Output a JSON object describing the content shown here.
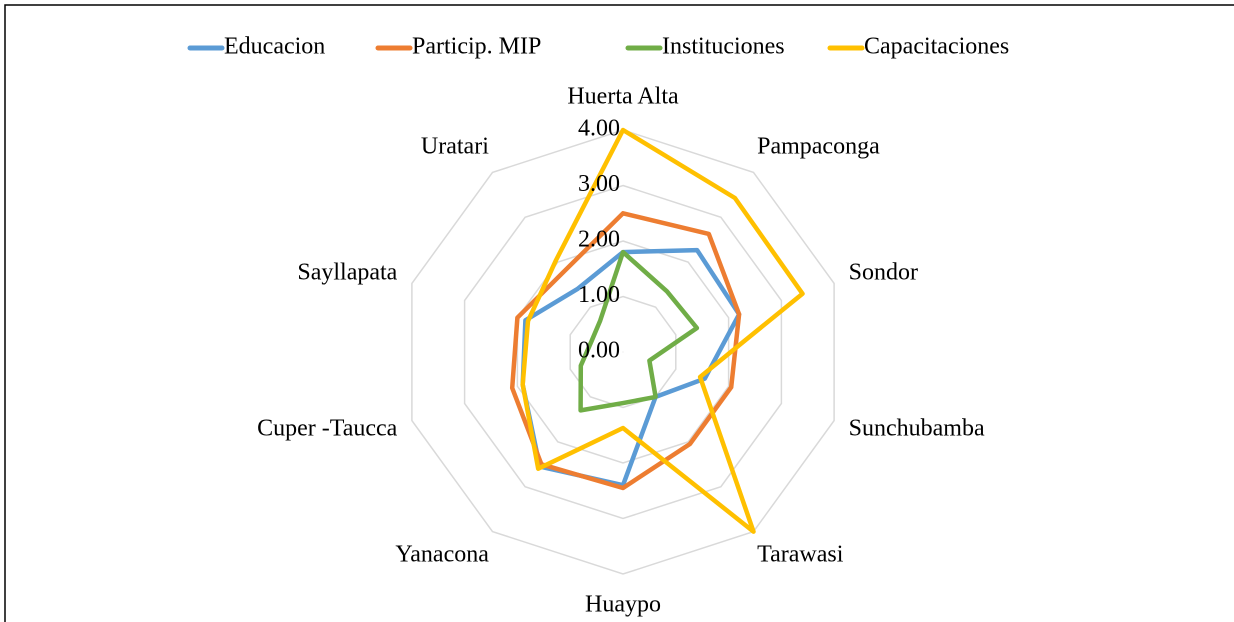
{
  "chart_data": {
    "type": "radar",
    "categories": [
      "Huerta Alta",
      "Pampaconga",
      "Sondor",
      "Sunchubamba",
      "Tarawasi",
      "Huaypo",
      "Yanacona",
      "Cuper -Taucca",
      "Sayllapata",
      "Uratari"
    ],
    "series": [
      {
        "name": "Educacion",
        "color": "#5b9bd5",
        "values": [
          1.8,
          2.27,
          2.2,
          1.55,
          1.0,
          2.4,
          2.55,
          1.9,
          1.85,
          1.4
        ]
      },
      {
        "name": "Particip. MIP",
        "color": "#ed7d31",
        "values": [
          2.5,
          2.63,
          2.2,
          2.05,
          2.05,
          2.45,
          2.5,
          2.1,
          2.0,
          1.8
        ]
      },
      {
        "name": "Instituciones",
        "color": "#70ad47",
        "values": [
          1.8,
          1.35,
          1.4,
          0.5,
          1.0,
          0.92,
          1.3,
          0.8,
          0.6,
          0.7
        ]
      },
      {
        "name": "Capacitaciones",
        "color": "#ffc000",
        "values": [
          4.0,
          3.43,
          3.4,
          1.46,
          4.0,
          1.37,
          2.6,
          1.9,
          1.8,
          2.05
        ]
      }
    ],
    "ylim": [
      0,
      4
    ],
    "yticks": [
      {
        "value": 0,
        "label": "0.00"
      },
      {
        "value": 1,
        "label": "1.00"
      },
      {
        "value": 2,
        "label": "2.00"
      },
      {
        "value": 3,
        "label": "3.00"
      },
      {
        "value": 4,
        "label": "4.00"
      }
    ],
    "grid": true,
    "legend": "top"
  }
}
